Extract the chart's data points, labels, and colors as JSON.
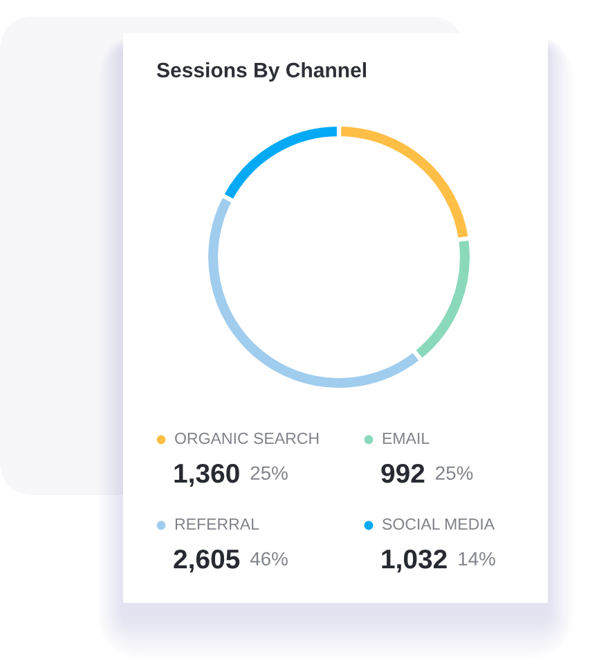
{
  "chart_data": {
    "type": "donut",
    "title": "Sessions By Channel",
    "categories": [
      "ORGANIC SEARCH",
      "EMAIL",
      "REFERRAL",
      "SOCIAL MEDIA"
    ],
    "values": [
      1360,
      992,
      2605,
      1032
    ],
    "colors": [
      "#ffbf47",
      "#8ad9bb",
      "#a0cdee",
      "#03a9f4"
    ],
    "value_labels": [
      "1,360",
      "992",
      "2,605",
      "1,032"
    ],
    "annotations": [
      "25%",
      "25%",
      "46%",
      "14%"
    ],
    "legend": "bottom"
  }
}
